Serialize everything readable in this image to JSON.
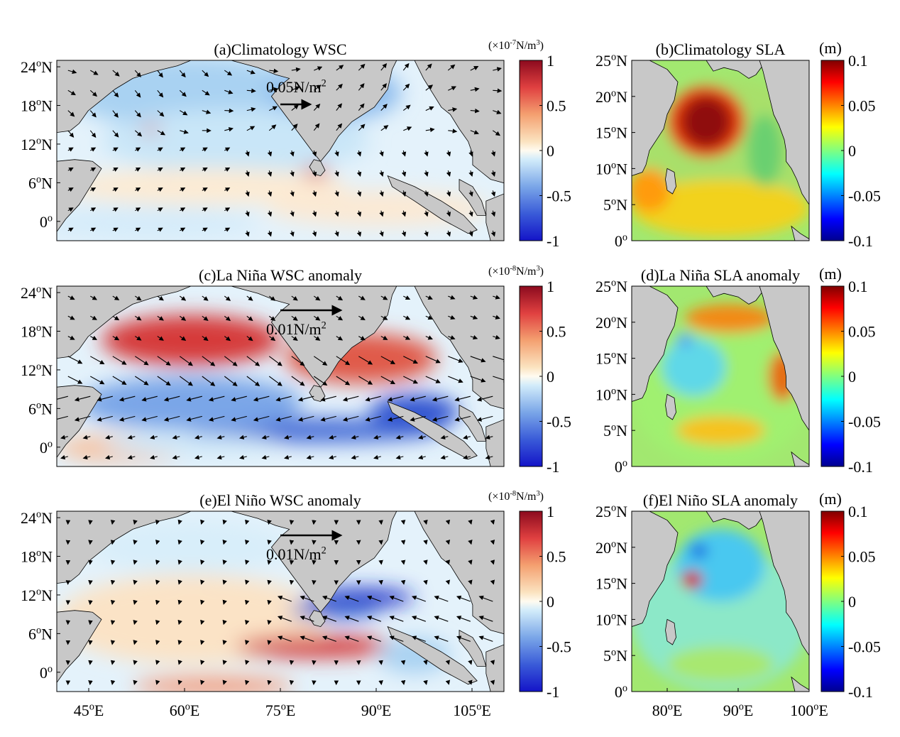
{
  "figure": {
    "panels": [
      {
        "id": "a",
        "title": "(a)Climatology WSC",
        "kind": "wsc",
        "unit_prefix": "(×10",
        "unit_exp": "-7",
        "unit_suffix": "N/m",
        "unit_sup": "3",
        "ref_arrow_value": "0.05N/m",
        "ref_arrow_sup": "2",
        "pattern": "clim"
      },
      {
        "id": "b",
        "title": "(b)Climatology SLA",
        "kind": "sla",
        "unit": "(m)",
        "pattern": "clim"
      },
      {
        "id": "c",
        "title": "(c)La Niña WSC anomaly",
        "kind": "wsc",
        "unit_prefix": "(×10",
        "unit_exp": "-8",
        "unit_suffix": "N/m",
        "unit_sup": "3",
        "ref_arrow_value": "0.01N/m",
        "ref_arrow_sup": "2",
        "pattern": "lanina"
      },
      {
        "id": "d",
        "title": "(d)La Niña SLA anomaly",
        "kind": "sla",
        "unit": "(m)",
        "pattern": "lanina"
      },
      {
        "id": "e",
        "title": "(e)El Niño WSC anomaly",
        "kind": "wsc",
        "unit_prefix": "(×10",
        "unit_exp": "-8",
        "unit_suffix": "N/m",
        "unit_sup": "3",
        "ref_arrow_value": "0.01N/m",
        "ref_arrow_sup": "2",
        "pattern": "elnino"
      },
      {
        "id": "f",
        "title": "(f)El Niño SLA anomaly",
        "kind": "sla",
        "unit": "(m)",
        "pattern": "elnino"
      }
    ],
    "wsc_axes": {
      "lat_ticks": [
        {
          "v": 24,
          "d": "24",
          "h": "N"
        },
        {
          "v": 18,
          "d": "18",
          "h": "N"
        },
        {
          "v": 12,
          "d": "12",
          "h": "N"
        },
        {
          "v": 6,
          "d": "6",
          "h": "N"
        },
        {
          "v": 0,
          "d": "0",
          "h": ""
        }
      ],
      "lon_ticks": [
        {
          "v": 45,
          "d": "45",
          "h": "E"
        },
        {
          "v": 60,
          "d": "60",
          "h": "E"
        },
        {
          "v": 75,
          "d": "75",
          "h": "E"
        },
        {
          "v": 90,
          "d": "90",
          "h": "E"
        },
        {
          "v": 105,
          "d": "105",
          "h": "E"
        }
      ],
      "lon_range": [
        40,
        110
      ],
      "lat_range": [
        -3,
        25
      ],
      "cbar_ticks": [
        "1",
        "0.5",
        "0",
        "-0.5",
        "-1"
      ],
      "cbar_range": [
        -1,
        1
      ]
    },
    "sla_axes": {
      "lat_ticks": [
        {
          "v": 25,
          "d": "25",
          "h": "N"
        },
        {
          "v": 20,
          "d": "20",
          "h": "N"
        },
        {
          "v": 15,
          "d": "15",
          "h": "N"
        },
        {
          "v": 10,
          "d": "10",
          "h": "N"
        },
        {
          "v": 5,
          "d": "5",
          "h": "N"
        },
        {
          "v": 0,
          "d": "0",
          "h": ""
        }
      ],
      "lon_ticks": [
        {
          "v": 80,
          "d": "80",
          "h": "E"
        },
        {
          "v": 90,
          "d": "90",
          "h": "E"
        },
        {
          "v": 100,
          "d": "100",
          "h": "E"
        }
      ],
      "lon_range": [
        75,
        100
      ],
      "lat_range": [
        0,
        25
      ],
      "cbar_ticks": [
        "0.1",
        "0.05",
        "0",
        "-0.05",
        "-0.1"
      ],
      "cbar_range": [
        -0.1,
        0.1
      ]
    },
    "degree_symbol": "o",
    "colors": {
      "land": "#c8c8c8",
      "coast": "#000000",
      "wsc_colormap": "blue-white-red",
      "sla_colormap": "jet"
    }
  }
}
